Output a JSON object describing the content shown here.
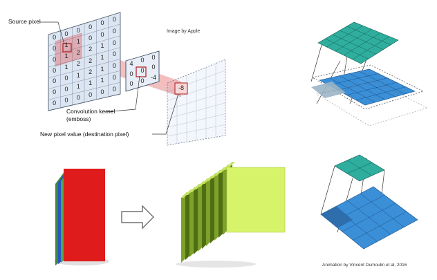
{
  "captions": {
    "apple_credit": "Image by Apple",
    "dumoulin_credit": "Animation by Vincent Dumoulin et al, 2016"
  },
  "figure_labels": {
    "source_pixel": "Source pixel",
    "kernel_line1": "Convolution kernel",
    "kernel_line2": "(emboss)",
    "new_pixel": "New pixel value (destination pixel)"
  },
  "source_grid": [
    [
      "0",
      "0",
      "0",
      "0",
      "0",
      "0"
    ],
    [
      "0",
      "1",
      "1",
      "0",
      "0",
      "0"
    ],
    [
      "0",
      "1",
      "2",
      "2",
      "1",
      "0"
    ],
    [
      "0",
      "1",
      "2",
      "2",
      "1",
      "0"
    ],
    [
      "0",
      "0",
      "1",
      "2",
      "1",
      "0"
    ],
    [
      "0",
      "0",
      "1",
      "1",
      "1",
      "0"
    ],
    [
      "0",
      "0",
      "0",
      "0",
      "0",
      "0"
    ]
  ],
  "kernel_grid": [
    [
      "4",
      "0",
      "0"
    ],
    [
      "0",
      "0",
      "0"
    ],
    [
      "0",
      "0",
      "-4"
    ]
  ],
  "output_value": "-8",
  "colors": {
    "teal": "#2fae9e",
    "blue": "#3a8fd6",
    "highlight_red": "#e04545",
    "feature_red": "#e01b1b",
    "feature_lime": "#d7f36a"
  }
}
